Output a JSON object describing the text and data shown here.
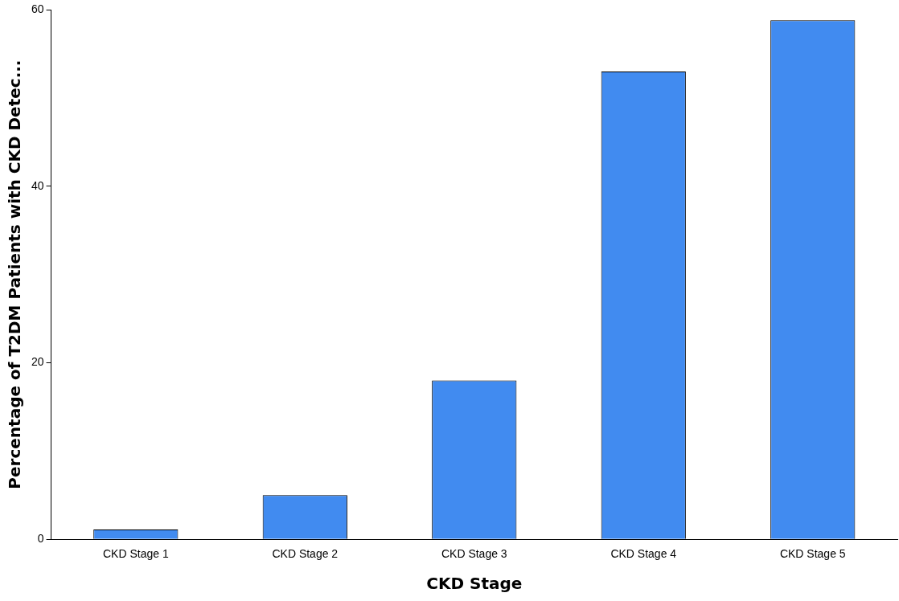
{
  "chart_data": {
    "type": "bar",
    "xlabel": "CKD Stage",
    "ylabel": "Percentage of T2DM Patients with CKD Detec...",
    "categories": [
      "CKD Stage 1",
      "CKD Stage 2",
      "CKD Stage 3",
      "CKD Stage 4",
      "CKD Stage 5"
    ],
    "values": [
      1.1,
      5,
      18,
      53,
      58.8
    ],
    "color": "#418bf0",
    "ylim": [
      0,
      60
    ],
    "yticks": [
      0,
      20,
      40,
      60
    ],
    "grid": false,
    "legend": false
  }
}
